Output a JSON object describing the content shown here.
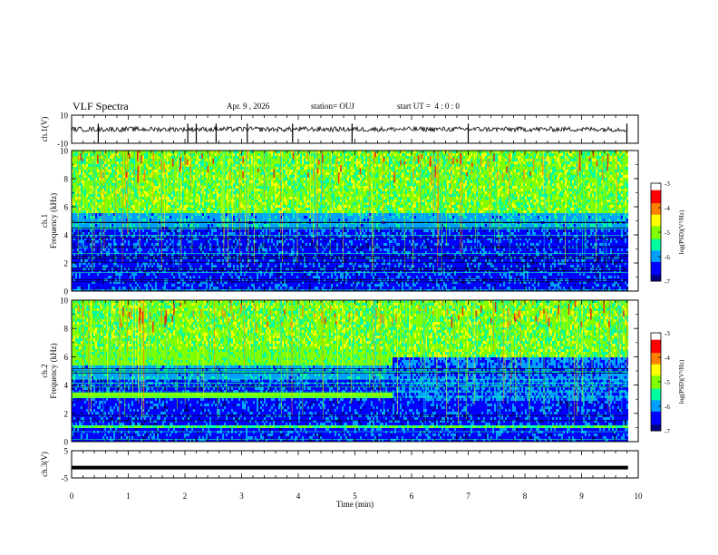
{
  "header": {
    "title": "VLF Spectra",
    "date": "Apr. 9 , 2026",
    "station": "station= OUJ",
    "start_time": "start UT =  4 : 0 : 0"
  },
  "chart_data": [
    {
      "type": "line",
      "name": "ch1-waveform",
      "ylabel": "ch.1(V)",
      "ylim": [
        -10,
        10
      ],
      "ytick_labels": [
        "10",
        "-10"
      ],
      "baseline_value": 0,
      "spike_times_min": [
        0.47,
        2.05,
        2.2,
        2.55,
        3.1,
        3.9,
        4.95,
        7.0,
        9.8
      ]
    },
    {
      "type": "heatmap",
      "name": "ch1-spectrogram",
      "ylabel": "ch.1 Frequency (kHz)",
      "ylabel_line1": "ch.1",
      "ylabel_line2": "Frequency (kHz)",
      "ylim": [
        0,
        10
      ],
      "ytick_labels": [
        "10",
        "8",
        "6",
        "4",
        "2",
        "0"
      ],
      "bands_khz": [
        {
          "from": 0,
          "to": 5.6,
          "level": "low"
        },
        {
          "from": 5.6,
          "to": 10,
          "level": "high"
        }
      ],
      "colorbar": {
        "label": "log(PSD)(V²/Hz)",
        "range": [
          -7,
          -3
        ],
        "tick_labels": [
          "-3",
          "-4",
          "-5",
          "-6",
          "-7"
        ],
        "colors": [
          "#000080",
          "#0000ff",
          "#00a0ff",
          "#00ffa0",
          "#80ff00",
          "#ffff00",
          "#ff8000",
          "#ff0000",
          "#ffffff"
        ]
      }
    },
    {
      "type": "heatmap",
      "name": "ch2-spectrogram",
      "ylabel": "ch.2 Frequency (kHz)",
      "ylabel_line1": "ch.2",
      "ylabel_line2": "Frequency (kHz)",
      "ylim": [
        0,
        10
      ],
      "ytick_labels": [
        "10",
        "8",
        "6",
        "4",
        "2",
        "0"
      ],
      "regime_change_min": 5.65,
      "colorbar": {
        "label": "log(PSD)(V²/Hz)",
        "range": [
          -7,
          -3
        ],
        "tick_labels": [
          "-3",
          "-4",
          "-5",
          "-6",
          "-7"
        ],
        "colors": [
          "#000080",
          "#0000ff",
          "#00a0ff",
          "#00ffa0",
          "#80ff00",
          "#ffff00",
          "#ff8000",
          "#ff0000",
          "#ffffff"
        ]
      }
    },
    {
      "type": "line",
      "name": "ch3-waveform",
      "ylabel": "ch.3(V)",
      "ylim": [
        -5,
        5
      ],
      "ytick_labels": [
        "5",
        "-5"
      ],
      "baseline_value": -1.2
    }
  ],
  "x_axis": {
    "label": "Time  (min)",
    "range": [
      0,
      10
    ],
    "data_end_min": 9.82,
    "tick_labels": [
      "0",
      "1",
      "2",
      "3",
      "4",
      "5",
      "6",
      "7",
      "8",
      "9",
      "10"
    ]
  }
}
